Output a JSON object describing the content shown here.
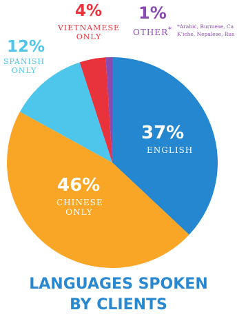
{
  "chart_data": {
    "type": "pie",
    "title_lines": [
      "LANGUAGES SPOKEN",
      "BY CLIENTS"
    ],
    "slices": [
      {
        "key": "english",
        "pct_label": "37%",
        "label_lines": [
          "ENGLISH"
        ],
        "value": 37,
        "color": "#2587d0"
      },
      {
        "key": "chinese",
        "pct_label": "46%",
        "label_lines": [
          "CHINESE",
          "ONLY"
        ],
        "value": 46,
        "color": "#f9a626"
      },
      {
        "key": "spanish",
        "pct_label": "12%",
        "label_lines": [
          "SPANISH",
          "ONLY"
        ],
        "value": 12,
        "color": "#4ec6ec"
      },
      {
        "key": "vietnamese",
        "pct_label": "4%",
        "label_lines": [
          "VIETNAMESE",
          "ONLY"
        ],
        "value": 4,
        "color": "#e8323c"
      },
      {
        "key": "other",
        "pct_label": "1%",
        "label_lines": [
          "OTHER"
        ],
        "label_mark": "*",
        "value": 1,
        "color": "#8a4bb0"
      }
    ],
    "footnote_lines": [
      "*Arabic, Burmese, Ca",
      "K’iche, Nepalese, Rus"
    ]
  }
}
